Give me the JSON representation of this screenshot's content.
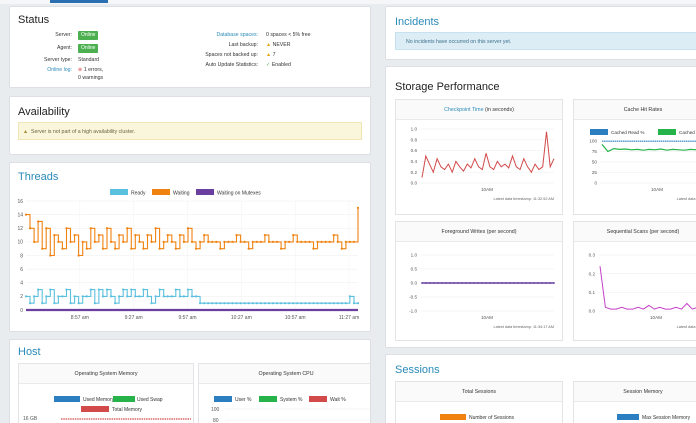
{
  "status": {
    "title": "Status",
    "server_label": "Server:",
    "server_value": "Online",
    "agent_label": "Agent:",
    "agent_value": "Online",
    "server_type_label": "Server type:",
    "server_type_value": "Standard",
    "online_log_label": "Online log:",
    "errors_value": "1 errors,",
    "warnings_value": "0 warnings",
    "db_spaces_label": "Database spaces:",
    "db_spaces_value": "0 spaces < 5% free",
    "last_backup_label": "Last backup:",
    "last_backup_value": "NEVER",
    "not_backed_label": "Spaces not backed up:",
    "not_backed_value": "7",
    "auto_stats_label": "Auto Update Statistics:",
    "auto_stats_value": "Enabled"
  },
  "availability": {
    "title": "Availability",
    "warning": "Server is not part of a high availability cluster."
  },
  "incidents": {
    "title": "Incidents",
    "message": "No incidents have occurred on this server yet."
  },
  "threads": {
    "title": "Threads",
    "legend": [
      "Ready",
      "Waiting",
      "Waiting on Mutexes"
    ],
    "colors": {
      "ready": "#5bc0de",
      "waiting": "#f0820f",
      "mutex": "#6a3fa0"
    }
  },
  "storage": {
    "title": "Storage Performance",
    "checkpoint": {
      "title": "Checkpoint Time",
      "unit": "(in seconds)",
      "xtick": "10AM",
      "timestamp": "Latest data timestamp: 11:32:52 AM",
      "yticks": [
        "1.0",
        "0.8",
        "0.6",
        "0.4",
        "0.2",
        "0.0"
      ]
    },
    "cache": {
      "title": "Cache Hit Rates",
      "legend": [
        "Cached Read %",
        "Cached"
      ],
      "xtick": "10AM",
      "timestamp": "Latest data timestamp",
      "yticks": [
        "100",
        "75",
        "50",
        "25",
        "0"
      ]
    },
    "foreground": {
      "title": "Foreground Writes (per second)",
      "xtick": "10AM",
      "timestamp": "Latest data timestamp: 11:34:17 AM",
      "yticks": [
        "1.0",
        "0.5",
        "0.0",
        "-0.5",
        "-1.0"
      ]
    },
    "seqscans": {
      "title": "Sequential Scans (per second)",
      "xtick": "10AM",
      "timestamp": "Latest data timestamp",
      "yticks": [
        "0.3",
        "0.2",
        "0.1",
        "0.0"
      ]
    }
  },
  "host": {
    "title": "Host",
    "memory": {
      "title": "Operating System Memory",
      "legend": [
        "Used Memory",
        "Used Swap",
        "Total Memory"
      ],
      "ytick": "16 GB"
    },
    "cpu": {
      "title": "Operating System CPU",
      "legend": [
        "User %",
        "System %",
        "Wait %"
      ],
      "yticks": [
        "100",
        "80"
      ]
    }
  },
  "sessions": {
    "title": "Sessions",
    "total": {
      "title": "Total Sessions",
      "legend": [
        "Number of Sessions"
      ]
    },
    "memory": {
      "title": "Session Memory",
      "legend": [
        "Max Session Memory"
      ]
    }
  },
  "chart_data": [
    {
      "type": "line",
      "title": "Threads",
      "x_ticks": [
        "8:57 am",
        "9:27 am",
        "9:57 am",
        "10:27 am",
        "10:57 am",
        "11:27 am"
      ],
      "ylim": [
        0,
        16
      ],
      "y_ticks": [
        0,
        2,
        4,
        6,
        8,
        10,
        12,
        14,
        16
      ],
      "x_minutes": [
        0,
        2,
        4,
        6,
        8,
        10,
        12,
        14,
        16,
        18,
        20,
        22,
        24,
        26,
        28,
        30,
        32,
        34,
        36,
        38,
        40,
        42,
        44,
        46,
        48,
        50,
        52,
        54,
        56,
        58,
        60,
        62,
        64,
        66,
        68,
        70,
        72,
        74,
        76,
        78,
        80,
        82,
        84,
        86,
        88,
        90,
        92,
        94,
        96,
        98,
        100,
        102,
        104,
        106,
        108,
        110,
        112,
        114,
        116,
        118,
        120,
        122,
        124,
        126,
        128,
        130,
        132,
        134,
        136,
        138,
        140,
        142,
        144,
        146,
        148,
        150,
        152,
        154,
        156,
        158,
        160,
        162,
        164
      ],
      "series": [
        {
          "name": "Ready",
          "values": [
            2,
            1,
            2,
            3,
            1,
            2,
            3,
            1,
            2,
            2,
            3,
            1,
            2,
            1,
            2,
            2,
            3,
            1,
            3,
            2,
            3,
            2,
            1,
            2,
            3,
            2,
            3,
            2,
            2,
            3,
            2,
            1,
            2,
            3,
            2,
            2,
            2,
            3,
            2,
            2,
            3,
            2,
            2,
            1,
            1,
            1,
            1,
            1,
            1,
            1,
            1,
            1,
            1,
            1,
            1,
            1,
            1,
            1,
            1,
            1,
            1,
            1,
            1,
            1,
            1,
            1,
            1,
            1,
            1,
            1,
            1,
            1,
            1,
            1,
            1,
            1,
            1,
            1,
            1,
            1,
            2,
            1,
            1
          ]
        },
        {
          "name": "Waiting",
          "values": [
            14,
            12,
            10,
            13,
            9,
            12,
            8,
            11,
            10,
            9,
            12,
            10,
            11,
            8,
            10,
            9,
            12,
            10,
            11,
            9,
            12,
            10,
            9,
            11,
            10,
            12,
            9,
            11,
            10,
            9,
            11,
            10,
            12,
            9,
            10,
            11,
            10,
            9,
            11,
            10,
            12,
            10,
            9,
            10,
            11,
            10,
            10,
            10,
            9,
            10,
            10,
            10,
            11,
            10,
            10,
            9,
            10,
            10,
            10,
            11,
            10,
            10,
            10,
            9,
            10,
            10,
            11,
            10,
            10,
            10,
            10,
            9,
            10,
            10,
            10,
            10,
            11,
            10,
            9,
            10,
            10,
            10,
            15
          ]
        },
        {
          "name": "Waiting on Mutexes",
          "values": [
            0,
            0,
            0,
            0,
            0,
            0,
            0,
            0,
            0,
            0,
            0,
            0,
            0,
            0,
            0,
            0,
            0,
            0,
            0,
            0,
            0,
            0,
            0,
            0,
            0,
            0,
            0,
            0,
            0,
            0,
            0,
            0,
            0,
            0,
            0,
            0,
            0,
            0,
            0,
            0,
            0,
            0,
            0,
            0,
            0,
            0,
            0,
            0,
            0,
            0,
            0,
            0,
            0,
            0,
            0,
            0,
            0,
            0,
            0,
            0,
            0,
            0,
            0,
            0,
            0,
            0,
            0,
            0,
            0,
            0,
            0,
            0,
            0,
            0,
            0,
            0,
            0,
            0,
            0,
            0,
            0,
            0,
            0
          ]
        }
      ]
    },
    {
      "type": "line",
      "title": "Checkpoint Time (in seconds)",
      "ylim": [
        0,
        1.0
      ],
      "values": [
        0.1,
        0.5,
        0.35,
        0.2,
        0.45,
        0.3,
        0.25,
        0.35,
        0.2,
        0.4,
        0.3,
        0.22,
        0.35,
        0.28,
        0.45,
        0.3,
        0.25,
        0.55,
        0.3,
        0.25,
        0.4,
        0.3,
        0.35,
        0.28,
        0.5,
        0.3,
        0.25,
        0.45,
        0.3,
        0.2,
        0.35,
        0.25,
        0.3,
        0.95,
        0.3,
        0.45
      ]
    },
    {
      "type": "line",
      "title": "Cache Hit Rates",
      "ylim": [
        0,
        100
      ],
      "series": [
        {
          "name": "Cached Read %",
          "values": [
            99.5,
            99.5,
            99.5,
            99.5,
            99.5,
            99.5,
            99.5,
            99.5,
            99.5,
            99.5,
            99.5,
            99.5,
            99.5,
            99.5,
            99.5,
            99.5,
            99.5,
            99.5,
            99.5,
            99.5
          ]
        },
        {
          "name": "Cached",
          "values": [
            92,
            75,
            82,
            80,
            81,
            79,
            80,
            78,
            80,
            79,
            81,
            78,
            80,
            79,
            78,
            80,
            79,
            78,
            79,
            78
          ]
        }
      ]
    },
    {
      "type": "line",
      "title": "Foreground Writes (per second)",
      "ylim": [
        -1.0,
        1.0
      ],
      "values": [
        0,
        0,
        0,
        0,
        0,
        0,
        0,
        0,
        0,
        0,
        0,
        0,
        0,
        0,
        0,
        0,
        0,
        0,
        0,
        0,
        0,
        0,
        0,
        0,
        0,
        0,
        0,
        0,
        0,
        0,
        0,
        0,
        0,
        0
      ]
    },
    {
      "type": "line",
      "title": "Sequential Scans (per second)",
      "ylim": [
        0,
        0.3
      ],
      "values": [
        0.24,
        0.02,
        0.01,
        0.01,
        0.02,
        0.01,
        0.01,
        0.02,
        0.01,
        0.03,
        0.01,
        0.02,
        0.01,
        0.01,
        0.02,
        0.01,
        0.04,
        0.01,
        0.02,
        0.01,
        0.01,
        0.02
      ]
    }
  ]
}
